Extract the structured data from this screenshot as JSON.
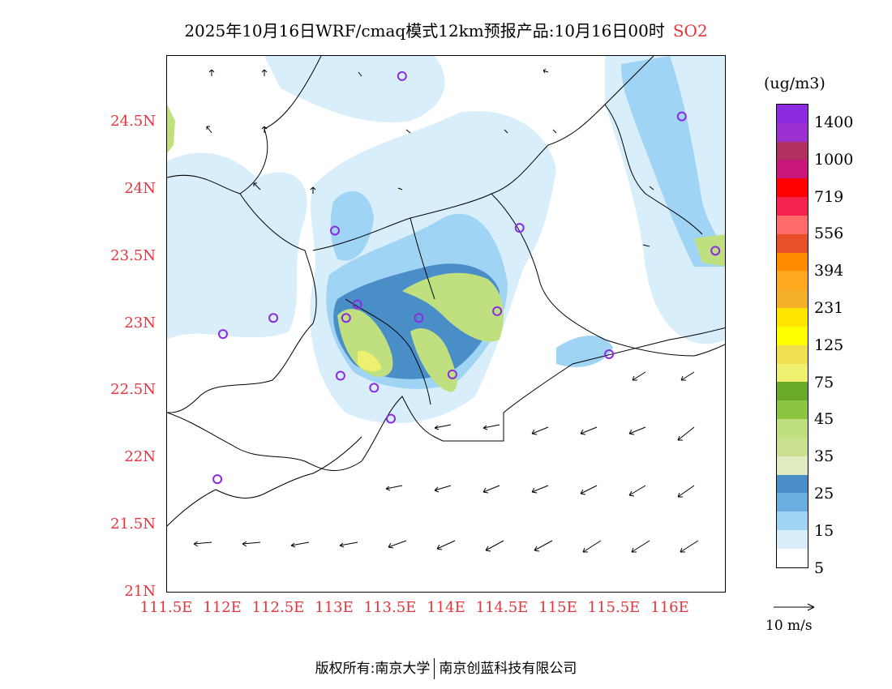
{
  "title": {
    "main": "2025年10月16日WRF/cmaq模式12km预报产品:10月16日00时",
    "species": "SO2"
  },
  "map": {
    "lat_labels": [
      "24.5N",
      "24N",
      "23.5N",
      "23N",
      "22.5N",
      "22N",
      "21.5N",
      "21N"
    ],
    "lon_labels": [
      "111.5E",
      "112E",
      "112.5E",
      "113E",
      "113.5E",
      "114E",
      "114.5E",
      "115E",
      "115.5E",
      "116E"
    ],
    "lat_values": [
      24.5,
      24.0,
      23.5,
      23.0,
      22.5,
      22.0,
      21.5,
      21.0
    ],
    "lon_values": [
      111.5,
      112.0,
      112.5,
      113.0,
      113.5,
      114.0,
      114.5,
      115.0,
      115.5,
      116.0
    ],
    "lat_range": [
      21.0,
      25.0
    ],
    "lon_range": [
      111.5,
      116.5
    ],
    "stations": [
      {
        "lon": 113.6,
        "lat": 24.85
      },
      {
        "lon": 116.1,
        "lat": 24.55
      },
      {
        "lon": 113.0,
        "lat": 23.7
      },
      {
        "lon": 114.65,
        "lat": 23.72
      },
      {
        "lon": 116.4,
        "lat": 23.55
      },
      {
        "lon": 113.2,
        "lat": 23.15
      },
      {
        "lon": 112.45,
        "lat": 23.05
      },
      {
        "lon": 113.1,
        "lat": 23.05
      },
      {
        "lon": 113.75,
        "lat": 23.05
      },
      {
        "lon": 114.45,
        "lat": 23.1
      },
      {
        "lon": 112.0,
        "lat": 22.93
      },
      {
        "lon": 115.45,
        "lat": 22.78
      },
      {
        "lon": 113.05,
        "lat": 22.62
      },
      {
        "lon": 114.05,
        "lat": 22.63
      },
      {
        "lon": 113.35,
        "lat": 22.53
      },
      {
        "lon": 113.5,
        "lat": 22.3
      },
      {
        "lon": 111.95,
        "lat": 21.85
      }
    ]
  },
  "colorbar": {
    "unit": "(ug/m3)",
    "labels": [
      "1400",
      "1000",
      "719",
      "556",
      "394",
      "231",
      "125",
      "75",
      "45",
      "35",
      "25",
      "15",
      "5"
    ],
    "colors": [
      "#8a2be2",
      "#9b30d0",
      "#b03060",
      "#c8177a",
      "#ff0000",
      "#f5224e",
      "#ff6a6a",
      "#e8502a",
      "#ff8c00",
      "#ffa820",
      "#f5b02a",
      "#ffe500",
      "#ffff00",
      "#f0e050",
      "#f0f070",
      "#6aaa2a",
      "#8cc640",
      "#c0e080",
      "#c8e090",
      "#e0ecc0",
      "#4a8ec8",
      "#6aaee0",
      "#a0d4f4",
      "#d8eefa",
      "#ffffff"
    ]
  },
  "wind_ref": {
    "label": "10 m/s"
  },
  "footer": {
    "left": "版权所有:南京大学",
    "right": "南京创蓝科技有限公司"
  }
}
